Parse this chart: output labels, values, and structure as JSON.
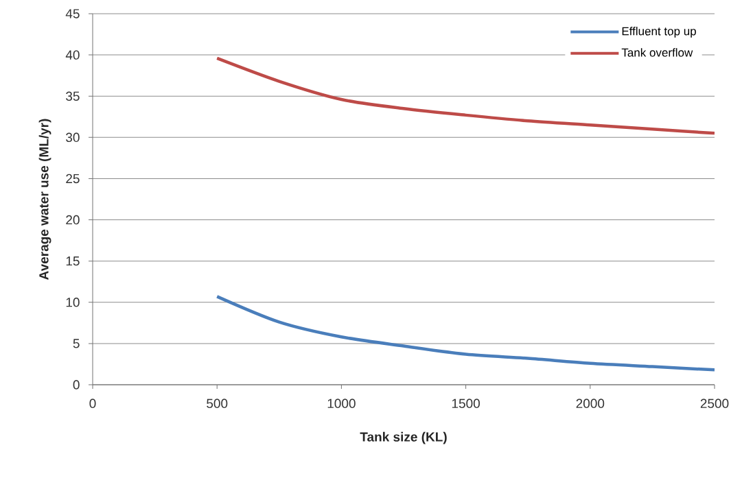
{
  "chart_data": {
    "type": "line",
    "xlabel": "Tank size (KL)",
    "ylabel": "Average water use (ML/yr)",
    "x": [
      500,
      750,
      1000,
      1250,
      1500,
      1750,
      2000,
      2250,
      2500
    ],
    "series": [
      {
        "name": "Effluent top up",
        "color": "#4a7ebb",
        "values": [
          10.7,
          7.6,
          5.8,
          4.7,
          3.7,
          3.2,
          2.6,
          2.2,
          1.8
        ]
      },
      {
        "name": "Tank overflow",
        "color": "#be4b48",
        "values": [
          39.6,
          36.8,
          34.6,
          33.5,
          32.7,
          32.0,
          31.5,
          31.0,
          30.5
        ]
      }
    ],
    "xlim": [
      0,
      2500
    ],
    "xticks": [
      0,
      500,
      1000,
      1500,
      2000,
      2500
    ],
    "ylim": [
      0,
      45
    ],
    "yticks": [
      0,
      5,
      10,
      15,
      20,
      25,
      30,
      35,
      40,
      45
    ],
    "grid": "y",
    "legend": "top right",
    "marker": "none",
    "line_style": "solid"
  }
}
